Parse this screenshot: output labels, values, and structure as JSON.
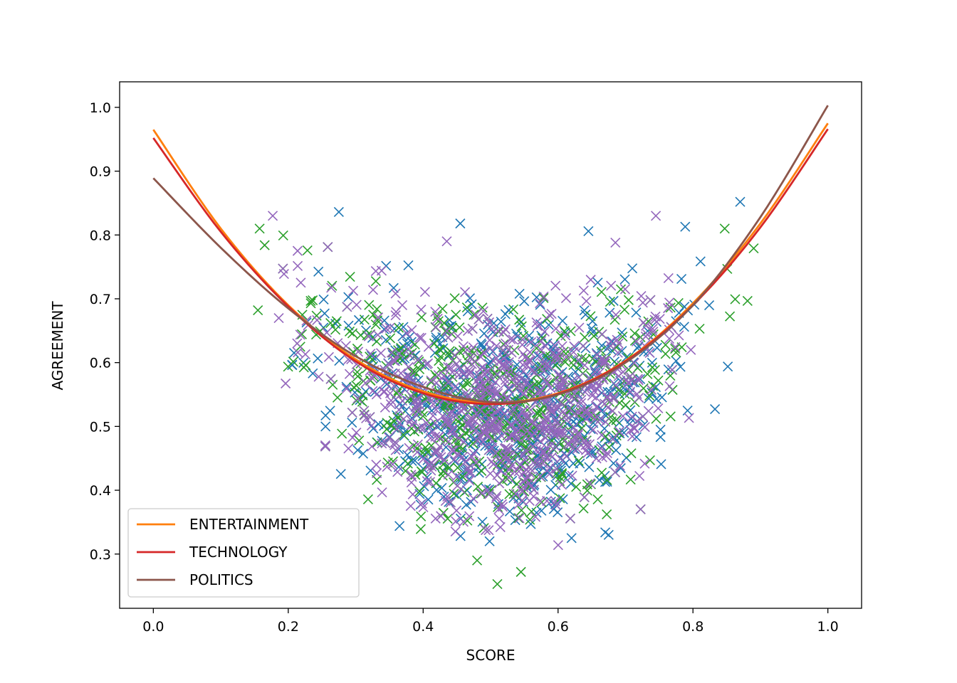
{
  "chart_data": {
    "type": "scatter",
    "title": "",
    "xlabel": "SCORE",
    "ylabel": "AGREEMENT",
    "xlim": [
      -0.05,
      1.05
    ],
    "ylim": [
      0.215,
      1.04
    ],
    "xticks": [
      "0.0",
      "0.2",
      "0.4",
      "0.6",
      "0.8",
      "1.0"
    ],
    "yticks": [
      "0.3",
      "0.4",
      "0.5",
      "0.6",
      "0.7",
      "0.8",
      "0.9",
      "1.0"
    ],
    "grid": false,
    "legend_position": "lower-left",
    "legend": [
      "ENTERTAINMENT",
      "TECHNOLOGY",
      "POLITICS"
    ],
    "scatter_series": [
      {
        "color": "#1f77b4",
        "marker": "x",
        "n_points": 620,
        "x_range": [
          0.16,
          0.88
        ],
        "y_range": [
          0.32,
          0.86
        ],
        "outliers": [
          [
            0.275,
            0.836
          ],
          [
            0.87,
            0.852
          ],
          [
            0.455,
            0.818
          ],
          [
            0.645,
            0.806
          ],
          [
            0.67,
            0.334
          ],
          [
            0.675,
            0.33
          ],
          [
            0.365,
            0.344
          ],
          [
            0.62,
            0.325
          ]
        ]
      },
      {
        "color": "#2ca02c",
        "marker": "x",
        "n_points": 620,
        "x_range": [
          0.15,
          0.89
        ],
        "y_range": [
          0.25,
          0.81
        ],
        "outliers": [
          [
            0.51,
            0.253
          ],
          [
            0.545,
            0.272
          ],
          [
            0.48,
            0.29
          ],
          [
            0.165,
            0.784
          ],
          [
            0.89,
            0.779
          ],
          [
            0.155,
            0.682
          ]
        ]
      },
      {
        "color": "#9467bd",
        "marker": "x",
        "n_points": 760,
        "x_range": [
          0.17,
          0.85
        ],
        "y_range": [
          0.31,
          0.83
        ],
        "outliers": [
          [
            0.745,
            0.83
          ],
          [
            0.685,
            0.788
          ],
          [
            0.435,
            0.79
          ]
        ]
      }
    ],
    "fit_curves": [
      {
        "name": "ENTERTAINMENT",
        "color": "#ff7f0e",
        "points": [
          [
            0.0,
            0.965
          ],
          [
            0.1,
            0.81
          ],
          [
            0.2,
            0.69
          ],
          [
            0.3,
            0.605
          ],
          [
            0.4,
            0.555
          ],
          [
            0.5,
            0.537
          ],
          [
            0.6,
            0.552
          ],
          [
            0.7,
            0.603
          ],
          [
            0.8,
            0.693
          ],
          [
            0.9,
            0.818
          ],
          [
            1.0,
            0.975
          ]
        ]
      },
      {
        "name": "TECHNOLOGY",
        "color": "#d62728",
        "points": [
          [
            0.0,
            0.952
          ],
          [
            0.1,
            0.805
          ],
          [
            0.2,
            0.688
          ],
          [
            0.3,
            0.602
          ],
          [
            0.4,
            0.552
          ],
          [
            0.5,
            0.535
          ],
          [
            0.6,
            0.551
          ],
          [
            0.7,
            0.602
          ],
          [
            0.8,
            0.69
          ],
          [
            0.9,
            0.812
          ],
          [
            1.0,
            0.966
          ]
        ]
      },
      {
        "name": "POLITICS",
        "color": "#8c564b",
        "points": [
          [
            0.0,
            0.889
          ],
          [
            0.1,
            0.78
          ],
          [
            0.2,
            0.685
          ],
          [
            0.3,
            0.61
          ],
          [
            0.4,
            0.562
          ],
          [
            0.5,
            0.538
          ],
          [
            0.6,
            0.55
          ],
          [
            0.7,
            0.6
          ],
          [
            0.8,
            0.69
          ],
          [
            0.9,
            0.828
          ],
          [
            1.0,
            1.003
          ]
        ]
      }
    ]
  }
}
